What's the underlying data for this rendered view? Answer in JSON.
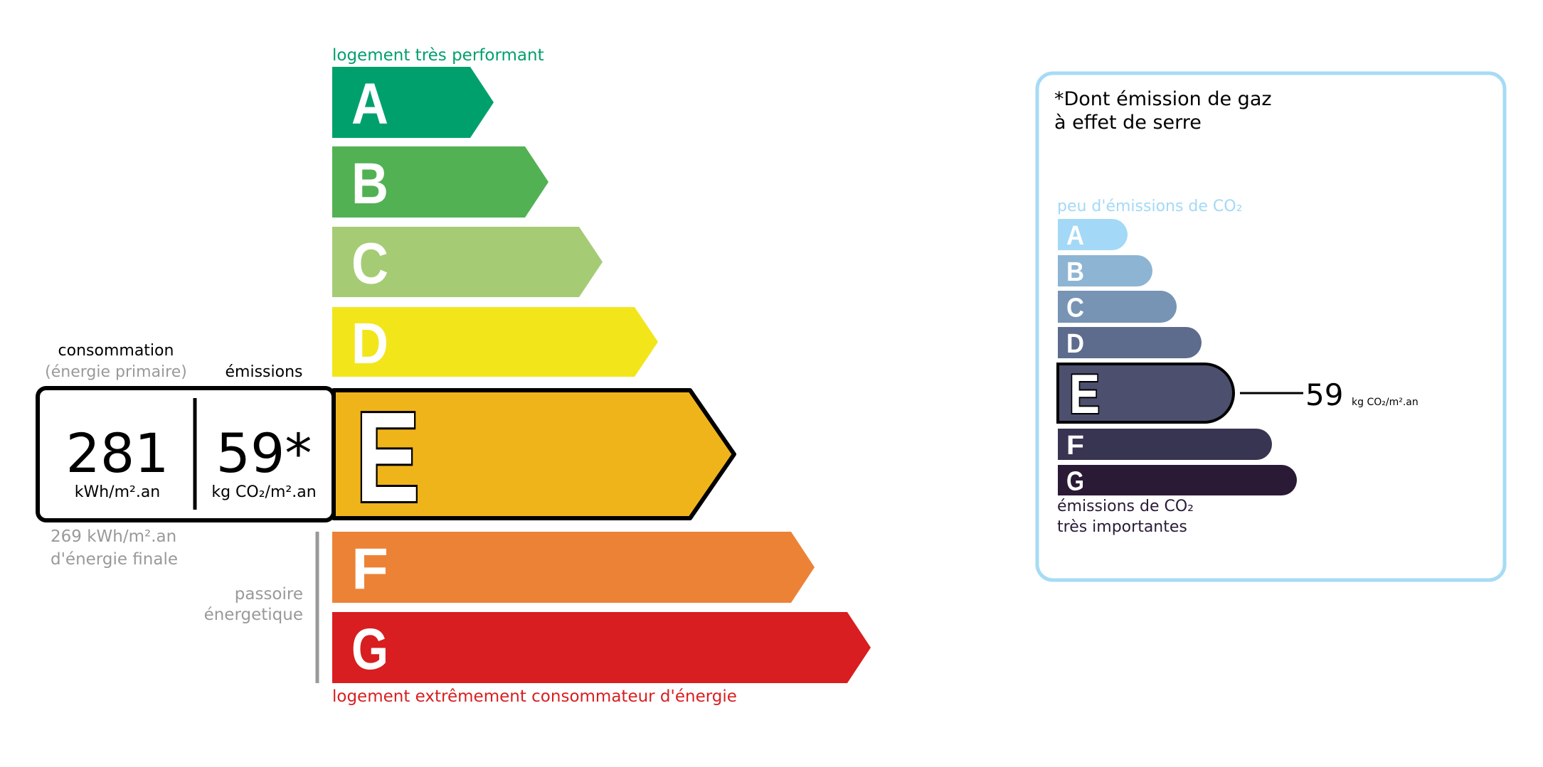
{
  "dpe": {
    "top_label": "logement très performant",
    "bottom_label": "logement extrêmement consommateur d'énergie",
    "classes": [
      {
        "letter": "A",
        "color": "#00a06d"
      },
      {
        "letter": "B",
        "color": "#52b153"
      },
      {
        "letter": "C",
        "color": "#a5cc74"
      },
      {
        "letter": "D",
        "color": "#f2e61b"
      },
      {
        "letter": "E",
        "color": "#f0b41b"
      },
      {
        "letter": "F",
        "color": "#ec8236"
      },
      {
        "letter": "G",
        "color": "#d81e20"
      }
    ],
    "current_class": "E",
    "consumption_label": "consommation",
    "consumption_sublabel": "(énergie primaire)",
    "emissions_label": "émissions",
    "consumption_value": "281",
    "consumption_unit": "kWh/m².an",
    "emissions_value": "59*",
    "emissions_unit": "kg CO₂/m².an",
    "final_energy_value": "269 kWh/m².an",
    "final_energy_label": "d'énergie finale",
    "passoire_line1": "passoire",
    "passoire_line2": "énergetique"
  },
  "ges": {
    "title_line1": "*Dont émission de gaz",
    "title_line2": "à effet de serre",
    "top_label": "peu d'émissions de CO₂",
    "bottom_label_line1": "émissions de CO₂",
    "bottom_label_line2": "très importantes",
    "classes": [
      {
        "letter": "A",
        "color": "#a3d9f6"
      },
      {
        "letter": "B",
        "color": "#8db4d3"
      },
      {
        "letter": "C",
        "color": "#7794b4"
      },
      {
        "letter": "D",
        "color": "#5d6b8d"
      },
      {
        "letter": "E",
        "color": "#4c4f6e"
      },
      {
        "letter": "F",
        "color": "#383552"
      },
      {
        "letter": "G",
        "color": "#2a1a36"
      }
    ],
    "current_class": "E",
    "value": "59",
    "unit": "kg CO₂/m².an",
    "border_color": "#a6dbf4"
  }
}
